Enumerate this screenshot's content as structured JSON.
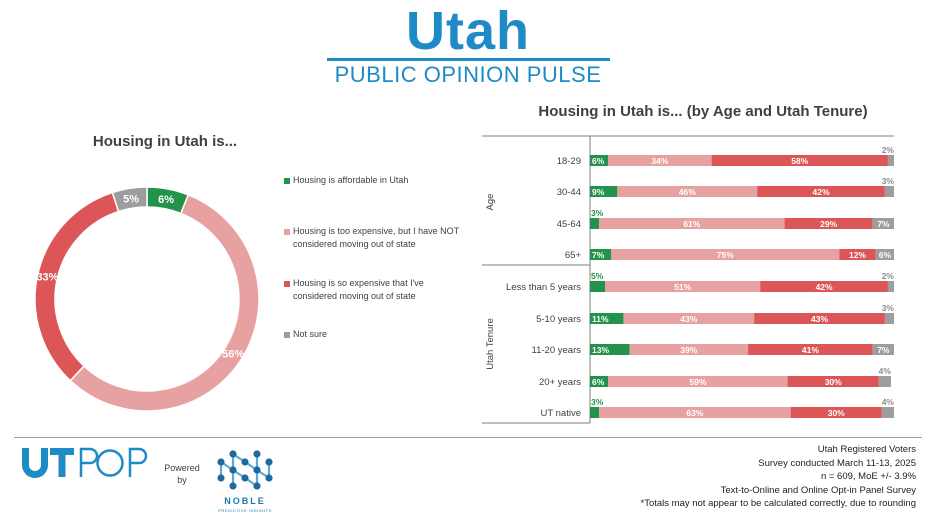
{
  "header": {
    "title": "Utah",
    "subtitle": "PUBLIC OPINION PULSE",
    "color": "#1e8ac6"
  },
  "legend": [
    {
      "label": "Housing is affordable in Utah",
      "color": "#24934a"
    },
    {
      "label": "Housing is too expensive, but I have NOT considered moving out of state",
      "color": "#e8a1a1"
    },
    {
      "label": "Housing is so expensive that I've considered moving out of state",
      "color": "#dc5658"
    },
    {
      "label": "Not sure",
      "color": "#9d9d9d"
    }
  ],
  "chart_data": [
    {
      "type": "pie",
      "donut": true,
      "title": "Housing in Utah is...",
      "categories": [
        "Housing is affordable in Utah",
        "Housing is too expensive, but I have NOT considered moving out of state",
        "Housing is so expensive that I've considered moving out of state",
        "Not sure"
      ],
      "values": [
        6,
        56,
        33,
        5
      ],
      "labels": [
        "6%",
        "56%",
        "33%",
        "5%"
      ],
      "colors": [
        "#24934a",
        "#e8a1a1",
        "#dc5658",
        "#9d9d9d"
      ]
    },
    {
      "type": "bar",
      "orientation": "horizontal",
      "stacked": true,
      "title": "Housing in Utah is... (by Age and Utah Tenure)",
      "groups": [
        {
          "label": "Age",
          "categories": [
            "18-29",
            "30-44",
            "45-64",
            "65+"
          ]
        },
        {
          "label": "Utah Tenure",
          "categories": [
            "Less than 5 years",
            "5-10 years",
            "11-20 years",
            "20+ years",
            "UT native"
          ]
        }
      ],
      "categories": [
        "18-29",
        "30-44",
        "45-64",
        "65+",
        "Less than 5 years",
        "5-10 years",
        "11-20 years",
        "20+ years",
        "UT native"
      ],
      "series": [
        {
          "name": "Housing is affordable in Utah",
          "color": "#24934a",
          "values": [
            6,
            9,
            3,
            7,
            5,
            11,
            13,
            6,
            3
          ]
        },
        {
          "name": "Housing is too expensive, but I have NOT considered moving out of state",
          "color": "#e8a1a1",
          "values": [
            34,
            46,
            61,
            75,
            51,
            43,
            39,
            59,
            63
          ]
        },
        {
          "name": "Housing is so expensive that I've considered moving out of state",
          "color": "#dc5658",
          "values": [
            58,
            42,
            29,
            12,
            42,
            43,
            41,
            30,
            30
          ]
        },
        {
          "name": "Not sure",
          "color": "#9d9d9d",
          "values": [
            2,
            3,
            7,
            6,
            2,
            3,
            7,
            4,
            4
          ]
        }
      ],
      "xlim": [
        0,
        100
      ]
    }
  ],
  "footer": {
    "logo_text": "UTPOP",
    "powered_by": "Powered by",
    "partner_name": "NOBLE",
    "partner_tagline": "PREDICTIVE INSIGHTS",
    "notes": [
      "Utah Registered Voters",
      "Survey conducted March 11-13, 2025",
      "n = 609, MoE +/- 3.9%",
      "Text-to-Online and Online Opt-in Panel Survey",
      "*Totals may not appear to be calculated correctly, due to rounding"
    ]
  }
}
